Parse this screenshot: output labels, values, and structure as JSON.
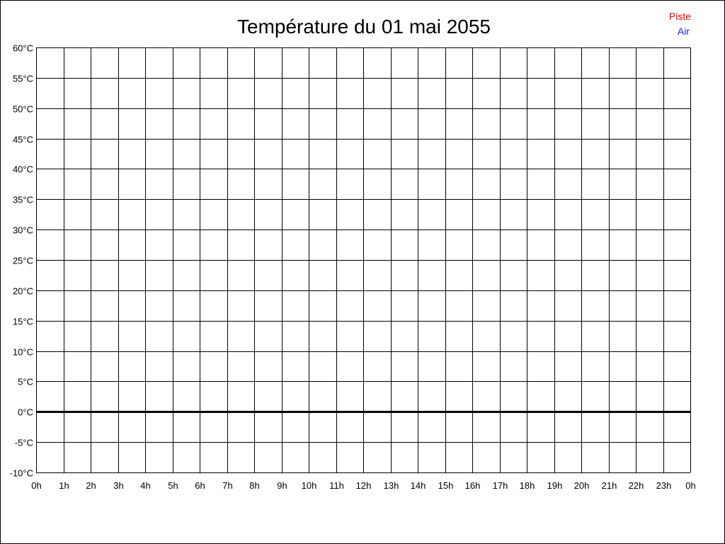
{
  "chart_data": {
    "type": "line",
    "title": "Température du 01 mai 2055",
    "xlabel": "",
    "ylabel": "",
    "x_tick_labels": [
      "0h",
      "1h",
      "2h",
      "3h",
      "4h",
      "5h",
      "6h",
      "7h",
      "8h",
      "9h",
      "10h",
      "11h",
      "12h",
      "13h",
      "14h",
      "15h",
      "16h",
      "17h",
      "18h",
      "19h",
      "20h",
      "21h",
      "22h",
      "23h",
      "0h"
    ],
    "y_tick_labels": [
      "60°C",
      "55°C",
      "50°C",
      "45°C",
      "40°C",
      "35°C",
      "30°C",
      "25°C",
      "20°C",
      "15°C",
      "10°C",
      "5°C",
      "0°C",
      "-5°C",
      "-10°C"
    ],
    "xlim": [
      0,
      24
    ],
    "ylim": [
      -10,
      60
    ],
    "y_step": 5,
    "grid": true,
    "zero_line_emphasized": true,
    "legend_position": "top-right",
    "series": [
      {
        "name": "Piste",
        "color": "#ff0000",
        "values": []
      },
      {
        "name": "Air",
        "color": "#2020ff",
        "values": []
      }
    ]
  }
}
